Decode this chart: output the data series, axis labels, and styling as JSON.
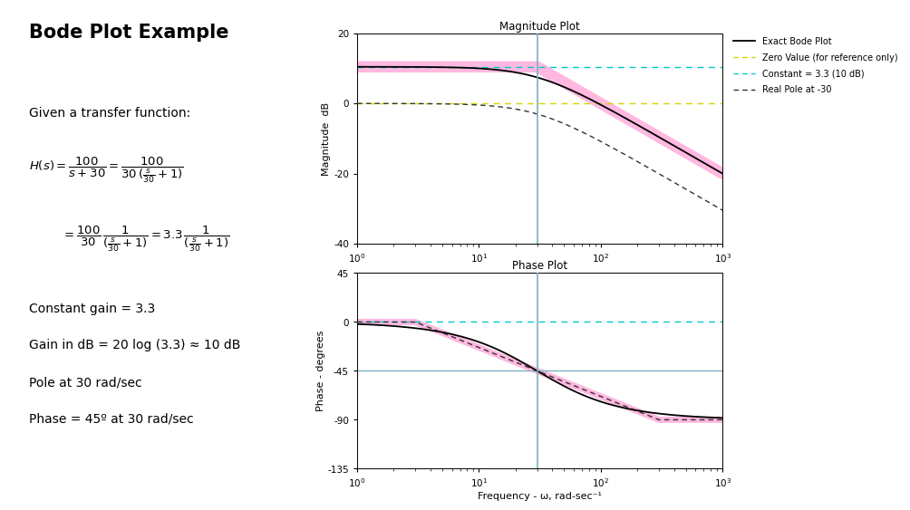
{
  "title": "Bode Plot Example",
  "transfer_function": {
    "K": 3.3333,
    "pole": 30
  },
  "freq_range": [
    1,
    1000
  ],
  "mag_ylim": [
    -40,
    20
  ],
  "phase_ylim": [
    -135,
    45
  ],
  "mag_yticks": [
    20,
    0,
    -20,
    -40
  ],
  "phase_yticks": [
    45,
    0,
    -45,
    -90,
    -135
  ],
  "mag_title": "Magnitude Plot",
  "phase_title": "Phase Plot",
  "xlabel": "Frequency - ω, rad-sec⁻¹",
  "mag_ylabel": "Magnitude  dB",
  "phase_ylabel": "Phase - degrees",
  "colors": {
    "exact": "#000000",
    "zero_ref": "#d4d400",
    "constant": "#00c8c8",
    "pole_approx": "#333333",
    "thick_pink": "#ffb8e0",
    "vline": "#7ab0c0",
    "hline_neg45": "#7ab0c0",
    "pink_phase": "#e060c0"
  },
  "legend_labels": [
    "Exact Bode Plot",
    "Zero Value (for reference only)",
    "Constant = 3.3 (10 dB)",
    "Real Pole at -30"
  ],
  "K_dB": 10.4576,
  "pole_freq": 30,
  "background": "#ffffff"
}
